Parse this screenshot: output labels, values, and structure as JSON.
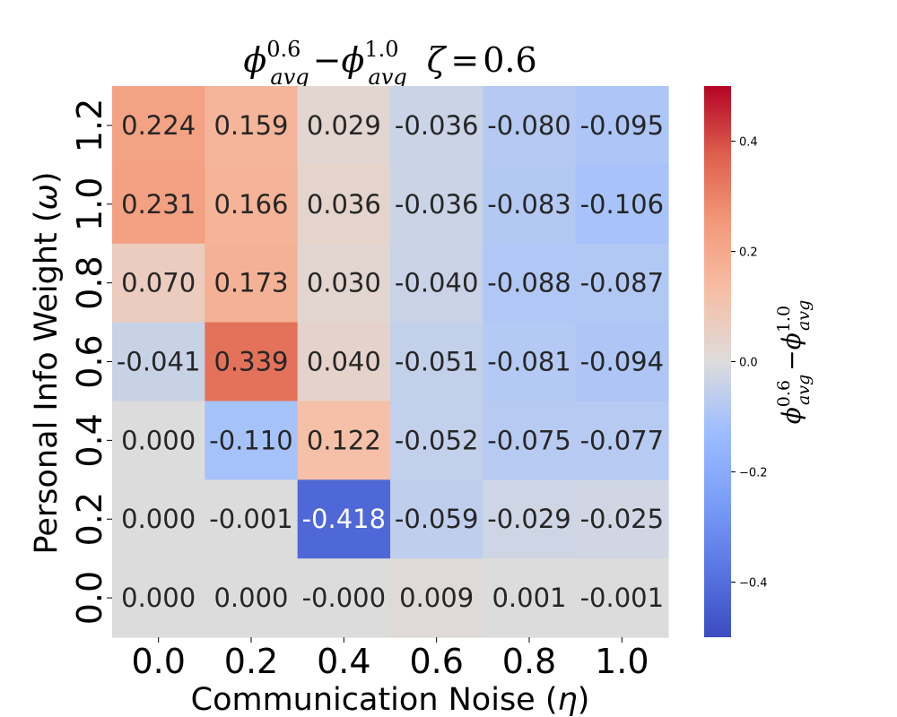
{
  "chart_data": {
    "type": "heatmap",
    "title": "φ^0.6_avg − φ^1.0_avg  ζ = 0.6",
    "title_parts": {
      "phi": "ϕ",
      "sup1": "0.6",
      "sub": "avg",
      "minus": "−",
      "sup2": "1.0",
      "zeta": "ζ",
      "eq": "=",
      "zeta_val": "0.6"
    },
    "xlabel": "Communication Noise (η)",
    "xlabel_parts": {
      "text": "Communication Noise (",
      "symbol": "η",
      "close": ")"
    },
    "ylabel": "Personal Info Weight (ω)",
    "ylabel_parts": {
      "text": "Personal Info Weight (",
      "symbol": "ω",
      "close": ")"
    },
    "x_categories": [
      "0.0",
      "0.2",
      "0.4",
      "0.6",
      "0.8",
      "1.0"
    ],
    "y_categories": [
      "1.2",
      "1.0",
      "0.8",
      "0.6",
      "0.4",
      "0.2",
      "0.0"
    ],
    "values": [
      [
        0.224,
        0.159,
        0.029,
        -0.036,
        -0.08,
        -0.095
      ],
      [
        0.231,
        0.166,
        0.036,
        -0.036,
        -0.083,
        -0.106
      ],
      [
        0.07,
        0.173,
        0.03,
        -0.04,
        -0.088,
        -0.087
      ],
      [
        -0.041,
        0.339,
        0.04,
        -0.051,
        -0.081,
        -0.094
      ],
      [
        0.0,
        -0.11,
        0.122,
        -0.052,
        -0.075,
        -0.077
      ],
      [
        0.0,
        -0.001,
        -0.418,
        -0.059,
        -0.029,
        -0.025
      ],
      [
        0.0,
        0.0,
        -0.0,
        0.009,
        0.001,
        -0.001
      ]
    ],
    "value_labels": [
      [
        "0.224",
        "0.159",
        "0.029",
        "-0.036",
        "-0.080",
        "-0.095"
      ],
      [
        "0.231",
        "0.166",
        "0.036",
        "-0.036",
        "-0.083",
        "-0.106"
      ],
      [
        "0.070",
        "0.173",
        "0.030",
        "-0.040",
        "-0.088",
        "-0.087"
      ],
      [
        "-0.041",
        "0.339",
        "0.040",
        "-0.051",
        "-0.081",
        "-0.094"
      ],
      [
        "0.000",
        "-0.110",
        "0.122",
        "-0.052",
        "-0.075",
        "-0.077"
      ],
      [
        "0.000",
        "-0.001",
        "-0.418",
        "-0.059",
        "-0.029",
        "-0.025"
      ],
      [
        "0.000",
        "0.000",
        "-0.000",
        "0.009",
        "0.001",
        "-0.001"
      ]
    ],
    "colormap": "coolwarm",
    "vmin": -0.5,
    "vmax": 0.5,
    "colorbar": {
      "label": "φ^0.6_avg − φ^1.0_avg",
      "ticks": [
        0.4,
        0.2,
        0.0,
        -0.2,
        -0.4
      ],
      "tick_labels": [
        "0.4",
        "0.2",
        "0.0",
        "−0.2",
        "−0.4"
      ]
    }
  }
}
